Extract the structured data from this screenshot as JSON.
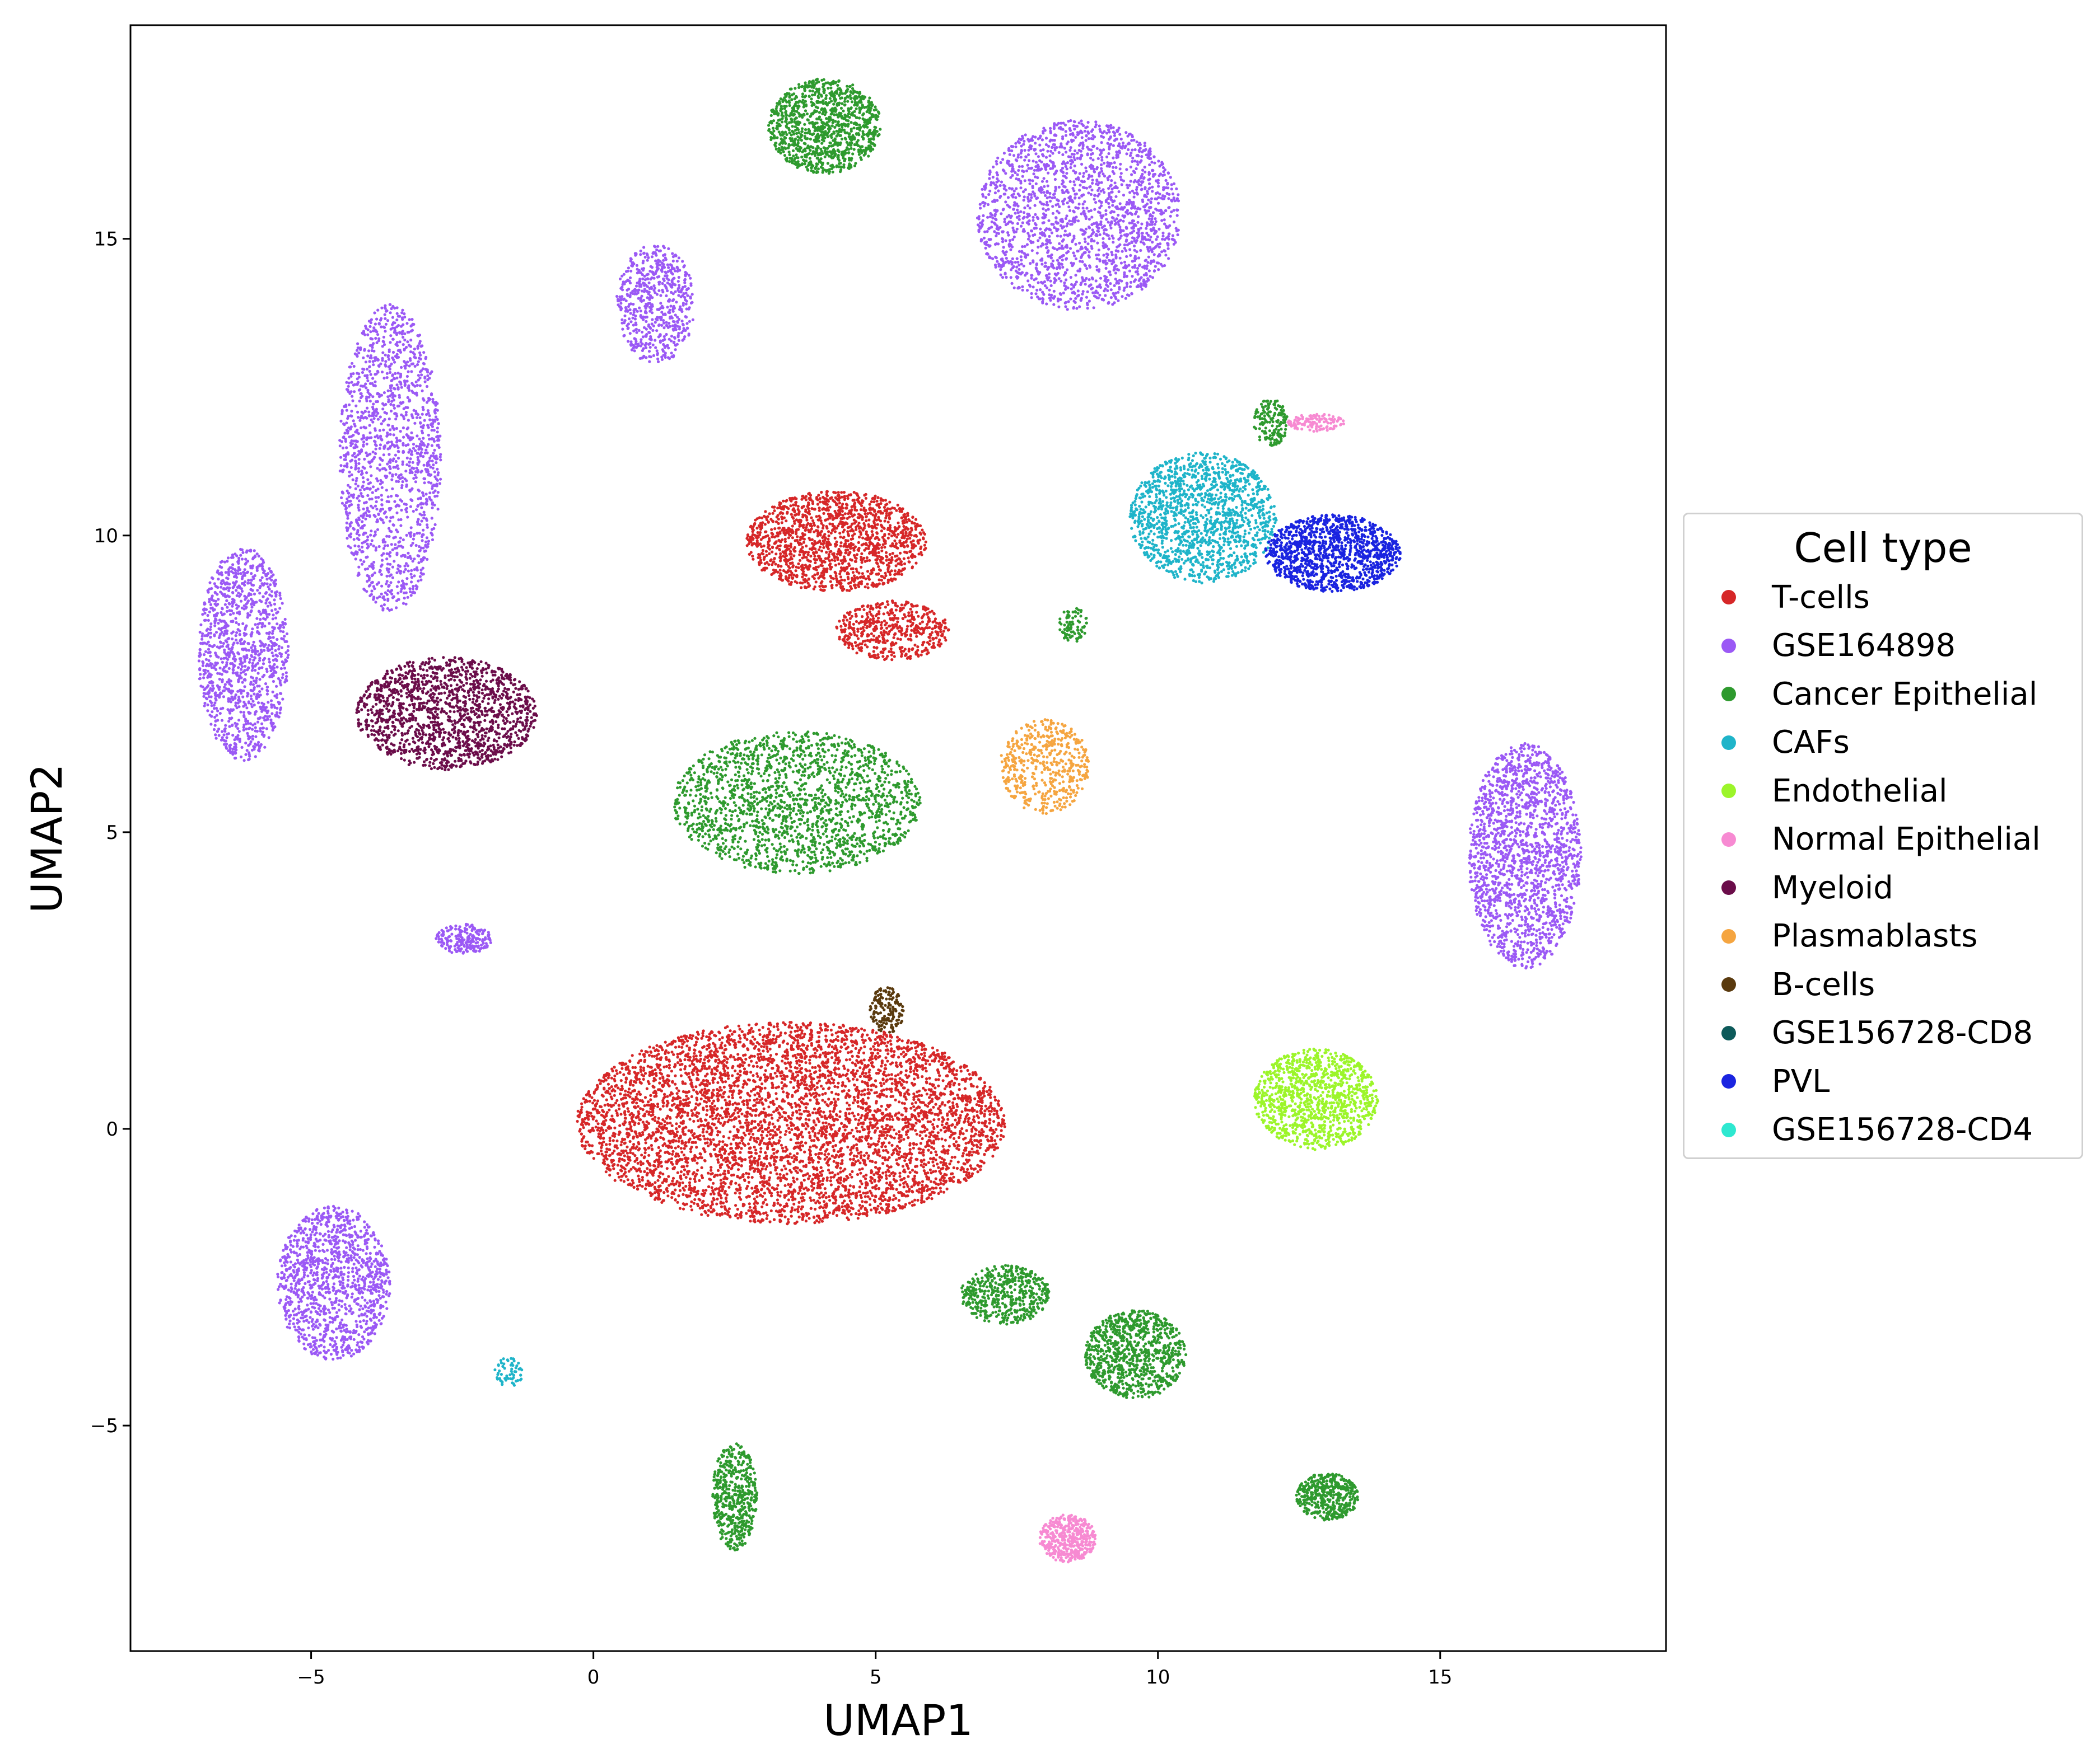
{
  "chart_data": {
    "type": "scatter",
    "title": "",
    "xlabel": "UMAP1",
    "ylabel": "UMAP2",
    "xlim": [
      -8.2,
      19.0
    ],
    "ylim": [
      -8.8,
      18.6
    ],
    "xticks": [
      -5,
      0,
      5,
      10,
      15
    ],
    "yticks": [
      -5,
      0,
      5,
      10,
      15
    ],
    "xtick_labels": [
      "−5",
      "0",
      "5",
      "10",
      "15"
    ],
    "ytick_labels": [
      "−5",
      "0",
      "5",
      "10",
      "15"
    ],
    "grid": false,
    "legend": {
      "title": "Cell type",
      "placement": "outside-right",
      "entries": [
        {
          "name": "T-cells",
          "color": "#d62728"
        },
        {
          "name": "GSE164898",
          "color": "#9b59f5"
        },
        {
          "name": "Cancer Epithelial",
          "color": "#2e9a2e"
        },
        {
          "name": "CAFs",
          "color": "#1fb4c9"
        },
        {
          "name": "Endothelial",
          "color": "#9cf52a"
        },
        {
          "name": "Normal Epithelial",
          "color": "#f78ad2"
        },
        {
          "name": "Myeloid",
          "color": "#6b0d4a"
        },
        {
          "name": "Plasmablasts",
          "color": "#f5a540"
        },
        {
          "name": "B-cells",
          "color": "#5a3a0e"
        },
        {
          "name": "GSE156728-CD8",
          "color": "#0d5a5a"
        },
        {
          "name": "PVL",
          "color": "#1a24e0"
        },
        {
          "name": "GSE156728-CD4",
          "color": "#2ee8d0"
        }
      ]
    },
    "clusters": [
      {
        "label": "Cancer Epithelial",
        "center": [
          4.1,
          16.9
        ],
        "rx": 1.0,
        "ry": 0.8,
        "n": 1100
      },
      {
        "label": "GSE164898",
        "center": [
          8.6,
          15.4
        ],
        "rx": 1.8,
        "ry": 1.6,
        "n": 2000
      },
      {
        "label": "GSE164898",
        "center": [
          1.1,
          13.9
        ],
        "rx": 0.7,
        "ry": 1.0,
        "n": 600
      },
      {
        "label": "GSE164898",
        "center": [
          -3.6,
          11.3
        ],
        "rx": 0.9,
        "ry": 2.6,
        "n": 1500
      },
      {
        "label": "GSE164898",
        "center": [
          -6.2,
          8.0
        ],
        "rx": 0.8,
        "ry": 1.8,
        "n": 1200
      },
      {
        "label": "Myeloid",
        "center": [
          -2.6,
          7.0
        ],
        "rx": 1.6,
        "ry": 0.95,
        "n": 1500
      },
      {
        "label": "T-cells",
        "center": [
          4.3,
          9.9
        ],
        "rx": 1.6,
        "ry": 0.85,
        "n": 1500
      },
      {
        "label": "T-cells",
        "center": [
          5.3,
          8.4
        ],
        "rx": 1.0,
        "ry": 0.5,
        "n": 500
      },
      {
        "label": "Plasmablasts",
        "center": [
          8.0,
          6.1
        ],
        "rx": 0.8,
        "ry": 0.8,
        "n": 500
      },
      {
        "label": "Cancer Epithelial",
        "center": [
          3.6,
          5.5
        ],
        "rx": 2.2,
        "ry": 1.2,
        "n": 1800
      },
      {
        "label": "Cancer Epithelial",
        "center": [
          12.0,
          11.9
        ],
        "rx": 0.3,
        "ry": 0.4,
        "n": 150
      },
      {
        "label": "Normal Epithelial",
        "center": [
          12.8,
          11.9
        ],
        "rx": 0.5,
        "ry": 0.15,
        "n": 120
      },
      {
        "label": "CAFs",
        "center": [
          10.8,
          10.3
        ],
        "rx": 1.3,
        "ry": 1.1,
        "n": 1400
      },
      {
        "label": "PVL",
        "center": [
          13.1,
          9.7
        ],
        "rx": 1.2,
        "ry": 0.65,
        "n": 1200
      },
      {
        "label": "Cancer Epithelial",
        "center": [
          8.5,
          8.5
        ],
        "rx": 0.25,
        "ry": 0.3,
        "n": 80
      },
      {
        "label": "GSE164898",
        "center": [
          16.5,
          4.6
        ],
        "rx": 1.0,
        "ry": 1.9,
        "n": 1700
      },
      {
        "label": "GSE164898",
        "center": [
          -2.3,
          3.2
        ],
        "rx": 0.5,
        "ry": 0.25,
        "n": 200
      },
      {
        "label": "T-cells",
        "center": [
          3.5,
          0.1
        ],
        "rx": 3.8,
        "ry": 1.7,
        "n": 6000
      },
      {
        "label": "B-cells",
        "center": [
          5.2,
          2.0
        ],
        "rx": 0.3,
        "ry": 0.4,
        "n": 150
      },
      {
        "label": "Endothelial",
        "center": [
          12.8,
          0.5
        ],
        "rx": 1.1,
        "ry": 0.85,
        "n": 1100
      },
      {
        "label": "GSE164898",
        "center": [
          -4.6,
          -2.6
        ],
        "rx": 1.0,
        "ry": 1.3,
        "n": 1200
      },
      {
        "label": "Cancer Epithelial",
        "center": [
          7.3,
          -2.8
        ],
        "rx": 0.8,
        "ry": 0.5,
        "n": 500
      },
      {
        "label": "Cancer Epithelial",
        "center": [
          9.6,
          -3.8
        ],
        "rx": 0.9,
        "ry": 0.75,
        "n": 900
      },
      {
        "label": "Cancer Epithelial",
        "center": [
          2.5,
          -6.2
        ],
        "rx": 0.4,
        "ry": 0.9,
        "n": 500
      },
      {
        "label": "Normal Epithelial",
        "center": [
          8.4,
          -6.9
        ],
        "rx": 0.5,
        "ry": 0.4,
        "n": 450
      },
      {
        "label": "Cancer Epithelial",
        "center": [
          13.0,
          -6.2
        ],
        "rx": 0.55,
        "ry": 0.4,
        "n": 450
      },
      {
        "label": "CAFs",
        "center": [
          -1.5,
          -4.1
        ],
        "rx": 0.25,
        "ry": 0.25,
        "n": 60
      }
    ]
  }
}
